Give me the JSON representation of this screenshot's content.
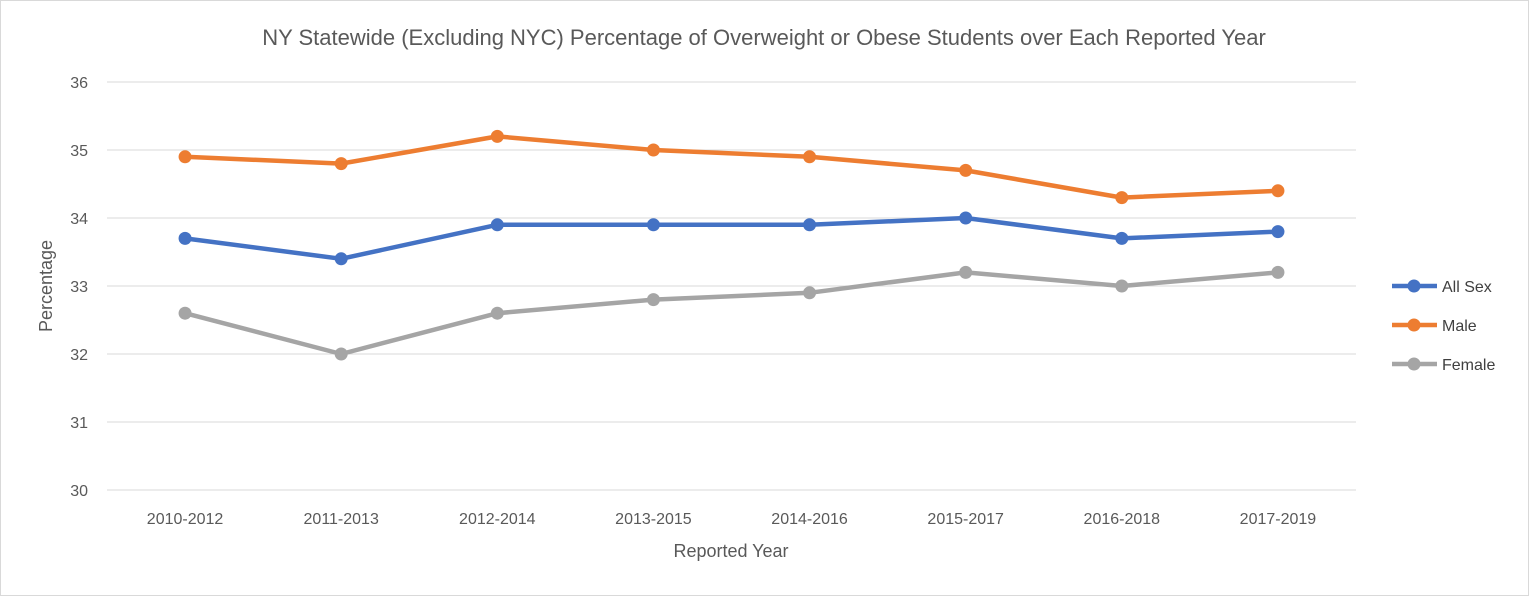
{
  "chart_data": {
    "type": "line",
    "title": "NY Statewide (Excluding NYC) Percentage of Overweight or Obese Students over Each Reported Year",
    "xlabel": "Reported Year",
    "ylabel": "Percentage",
    "categories": [
      "2010-2012",
      "2011-2013",
      "2012-2014",
      "2013-2015",
      "2014-2016",
      "2015-2017",
      "2016-2018",
      "2017-2019"
    ],
    "ylim": [
      30,
      36
    ],
    "yticks": [
      30,
      31,
      32,
      33,
      34,
      35,
      36
    ],
    "grid": true,
    "legend_position": "right",
    "series": [
      {
        "name": "All Sex",
        "color": "#4472c4",
        "values": [
          33.7,
          33.4,
          33.9,
          33.9,
          33.9,
          34.0,
          33.7,
          33.8
        ]
      },
      {
        "name": "Male",
        "color": "#ed7d31",
        "values": [
          34.9,
          34.8,
          35.2,
          35.0,
          34.9,
          34.7,
          34.3,
          34.4
        ]
      },
      {
        "name": "Female",
        "color": "#a5a5a5",
        "values": [
          32.6,
          32.0,
          32.6,
          32.8,
          32.9,
          33.2,
          33.0,
          33.2
        ]
      }
    ]
  }
}
